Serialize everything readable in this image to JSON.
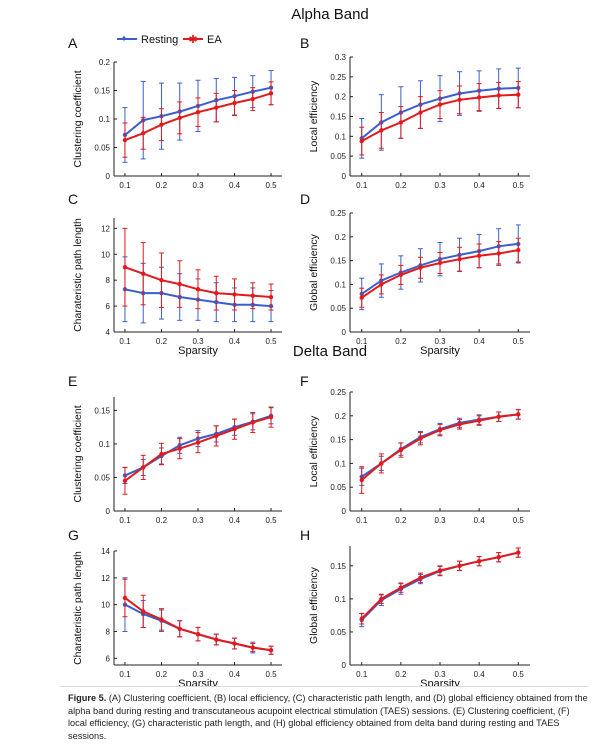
{
  "sections": [
    {
      "title": "Alpha Band"
    },
    {
      "title": "Delta Band"
    }
  ],
  "legend": {
    "resting_label": "Resting",
    "ea_label": "EA",
    "resting_color": "#3a5fcd",
    "ea_color": "#e31a1c"
  },
  "caption": {
    "label": "Figure 5.",
    "text": "(A) Clustering coefficient, (B) local efficiency, (C) characteristic path length, and (D) global efficiency obtained from the alpha band during resting and transcutaneous acupoint electrical stimulation (TAES) sessions. (E) Clustering coefficient, (F) local efficiency, (G) characteristic path length, and (H) global efficiency obtained from delta band during resting and TAES sessions."
  },
  "chart_data": [
    {
      "panel": "A",
      "type": "line",
      "xlabel": "",
      "ylabel": "Clustering coefficient",
      "x": [
        0.1,
        0.15,
        0.2,
        0.25,
        0.3,
        0.35,
        0.4,
        0.45,
        0.5
      ],
      "xticks": [
        0.1,
        0.2,
        0.3,
        0.4,
        0.5
      ],
      "xlim": [
        0.07,
        0.53
      ],
      "yticks": [
        0,
        0.05,
        0.1,
        0.15,
        0.2
      ],
      "ytick_labels": [
        "0",
        "0.05",
        "0.1",
        "0.15",
        "0.2"
      ],
      "ylim": [
        0,
        0.2
      ],
      "series": [
        {
          "name": "Resting",
          "values": [
            0.072,
            0.098,
            0.105,
            0.113,
            0.123,
            0.133,
            0.14,
            0.148,
            0.155
          ],
          "err": [
            0.048,
            0.068,
            0.058,
            0.05,
            0.045,
            0.038,
            0.033,
            0.028,
            0.03
          ]
        },
        {
          "name": "EA",
          "values": [
            0.063,
            0.075,
            0.09,
            0.102,
            0.112,
            0.12,
            0.128,
            0.135,
            0.145
          ],
          "err": [
            0.03,
            0.028,
            0.028,
            0.028,
            0.025,
            0.025,
            0.022,
            0.02,
            0.02
          ]
        }
      ]
    },
    {
      "panel": "B",
      "type": "line",
      "xlabel": "",
      "ylabel": "Local efficiency",
      "x": [
        0.1,
        0.15,
        0.2,
        0.25,
        0.3,
        0.35,
        0.4,
        0.45,
        0.5
      ],
      "xticks": [
        0.1,
        0.2,
        0.3,
        0.4,
        0.5
      ],
      "xlim": [
        0.07,
        0.53
      ],
      "yticks": [
        0,
        0.05,
        0.1,
        0.15,
        0.2,
        0.25,
        0.3
      ],
      "ytick_labels": [
        "0",
        "0.05",
        "0.1",
        "0.15",
        "0.2",
        "0.25",
        "0.3"
      ],
      "ylim": [
        0,
        0.3
      ],
      "series": [
        {
          "name": "Resting",
          "values": [
            0.095,
            0.135,
            0.16,
            0.18,
            0.195,
            0.208,
            0.215,
            0.22,
            0.222
          ],
          "err": [
            0.05,
            0.07,
            0.065,
            0.06,
            0.058,
            0.055,
            0.05,
            0.05,
            0.05
          ]
        },
        {
          "name": "EA",
          "values": [
            0.088,
            0.115,
            0.135,
            0.16,
            0.18,
            0.192,
            0.198,
            0.203,
            0.205
          ],
          "err": [
            0.035,
            0.045,
            0.04,
            0.04,
            0.035,
            0.035,
            0.035,
            0.033,
            0.033
          ]
        }
      ]
    },
    {
      "panel": "C",
      "type": "line",
      "xlabel": "Sparsity",
      "ylabel": "Charateristic path length",
      "x": [
        0.1,
        0.15,
        0.2,
        0.25,
        0.3,
        0.35,
        0.4,
        0.45,
        0.5
      ],
      "xticks": [
        0.1,
        0.2,
        0.3,
        0.4,
        0.5
      ],
      "xlim": [
        0.07,
        0.53
      ],
      "yticks": [
        4,
        6,
        8,
        10,
        12
      ],
      "ytick_labels": [
        "4",
        "6",
        "8",
        "10",
        "12"
      ],
      "ylim": [
        4,
        12.8
      ],
      "series": [
        {
          "name": "Resting",
          "values": [
            7.3,
            7.0,
            7.0,
            6.7,
            6.5,
            6.3,
            6.1,
            6.1,
            6.0
          ],
          "err": [
            2.5,
            2.3,
            2.0,
            1.8,
            1.6,
            1.5,
            1.3,
            1.3,
            1.2
          ]
        },
        {
          "name": "EA",
          "values": [
            9.0,
            8.5,
            8.0,
            7.7,
            7.3,
            7.0,
            6.9,
            6.8,
            6.7
          ],
          "err": [
            3.0,
            2.4,
            2.1,
            1.8,
            1.5,
            1.3,
            1.2,
            1.0,
            1.0
          ]
        }
      ]
    },
    {
      "panel": "D",
      "type": "line",
      "xlabel": "Sparsity",
      "ylabel": "Global efficiency",
      "x": [
        0.1,
        0.15,
        0.2,
        0.25,
        0.3,
        0.35,
        0.4,
        0.45,
        0.5
      ],
      "xticks": [
        0.1,
        0.2,
        0.3,
        0.4,
        0.5
      ],
      "xlim": [
        0.07,
        0.53
      ],
      "yticks": [
        0,
        0.05,
        0.1,
        0.15,
        0.2,
        0.25
      ],
      "ytick_labels": [
        "0",
        "0.05",
        "0.1",
        "0.15",
        "0.2",
        "0.25"
      ],
      "ylim": [
        0,
        0.25
      ],
      "series": [
        {
          "name": "Resting",
          "values": [
            0.08,
            0.108,
            0.125,
            0.14,
            0.153,
            0.162,
            0.17,
            0.18,
            0.185
          ],
          "err": [
            0.033,
            0.035,
            0.035,
            0.035,
            0.035,
            0.035,
            0.035,
            0.037,
            0.04
          ]
        },
        {
          "name": "EA",
          "values": [
            0.072,
            0.1,
            0.12,
            0.135,
            0.145,
            0.153,
            0.16,
            0.165,
            0.172
          ],
          "err": [
            0.02,
            0.02,
            0.02,
            0.022,
            0.022,
            0.025,
            0.025,
            0.025,
            0.025
          ]
        }
      ]
    },
    {
      "panel": "E",
      "type": "line",
      "xlabel": "",
      "ylabel": "Clustering coefficient",
      "x": [
        0.1,
        0.15,
        0.2,
        0.25,
        0.3,
        0.35,
        0.4,
        0.45,
        0.5
      ],
      "xticks": [
        0.1,
        0.2,
        0.3,
        0.4,
        0.5
      ],
      "xlim": [
        0.07,
        0.53
      ],
      "yticks": [
        0,
        0.05,
        0.1,
        0.15
      ],
      "ytick_labels": [
        "0",
        "0.05",
        "0.1",
        "0.15"
      ],
      "ylim": [
        0,
        0.17
      ],
      "series": [
        {
          "name": "Resting",
          "values": [
            0.053,
            0.065,
            0.082,
            0.098,
            0.108,
            0.115,
            0.125,
            0.133,
            0.142
          ],
          "err": [
            0.012,
            0.012,
            0.012,
            0.012,
            0.012,
            0.012,
            0.012,
            0.012,
            0.012
          ]
        },
        {
          "name": "EA",
          "values": [
            0.045,
            0.065,
            0.085,
            0.093,
            0.102,
            0.112,
            0.122,
            0.132,
            0.14
          ],
          "err": [
            0.02,
            0.018,
            0.016,
            0.015,
            0.015,
            0.015,
            0.015,
            0.015,
            0.015
          ]
        }
      ]
    },
    {
      "panel": "F",
      "type": "line",
      "xlabel": "",
      "ylabel": "Local efficiency",
      "x": [
        0.1,
        0.15,
        0.2,
        0.25,
        0.3,
        0.35,
        0.4,
        0.45,
        0.5
      ],
      "xticks": [
        0.1,
        0.2,
        0.3,
        0.4,
        0.5
      ],
      "xlim": [
        0.07,
        0.53
      ],
      "yticks": [
        0,
        0.05,
        0.1,
        0.15,
        0.2,
        0.25
      ],
      "ytick_labels": [
        "0",
        "0.05",
        "0.1",
        "0.15",
        "0.2",
        "0.25"
      ],
      "ylim": [
        0,
        0.25
      ],
      "series": [
        {
          "name": "Resting",
          "values": [
            0.072,
            0.1,
            0.13,
            0.155,
            0.172,
            0.185,
            0.192,
            0.198,
            0.203
          ],
          "err": [
            0.018,
            0.015,
            0.013,
            0.012,
            0.012,
            0.01,
            0.01,
            0.01,
            0.01
          ]
        },
        {
          "name": "EA",
          "values": [
            0.065,
            0.1,
            0.128,
            0.152,
            0.17,
            0.182,
            0.19,
            0.198,
            0.203
          ],
          "err": [
            0.028,
            0.02,
            0.015,
            0.013,
            0.012,
            0.01,
            0.01,
            0.01,
            0.01
          ]
        }
      ]
    },
    {
      "panel": "G",
      "type": "line",
      "xlabel": "Sparsity",
      "ylabel": "Charateristic path length",
      "x": [
        0.1,
        0.15,
        0.2,
        0.25,
        0.3,
        0.35,
        0.4,
        0.45,
        0.5
      ],
      "xticks": [
        0.1,
        0.2,
        0.3,
        0.4,
        0.5
      ],
      "xlim": [
        0.07,
        0.53
      ],
      "yticks": [
        6,
        8,
        10,
        12,
        14
      ],
      "ytick_labels": [
        "6",
        "8",
        "10",
        "12",
        "14"
      ],
      "ylim": [
        5.5,
        14
      ],
      "series": [
        {
          "name": "Resting",
          "values": [
            10.0,
            9.3,
            8.8,
            8.2,
            7.8,
            7.4,
            7.1,
            6.8,
            6.6
          ],
          "err": [
            2.0,
            1.0,
            0.8,
            0.6,
            0.5,
            0.4,
            0.4,
            0.4,
            0.3
          ]
        },
        {
          "name": "EA",
          "values": [
            10.5,
            9.5,
            8.9,
            8.2,
            7.8,
            7.4,
            7.1,
            6.8,
            6.6
          ],
          "err": [
            1.4,
            1.2,
            0.8,
            0.6,
            0.5,
            0.4,
            0.4,
            0.3,
            0.3
          ]
        }
      ]
    },
    {
      "panel": "H",
      "type": "line",
      "xlabel": "Sparsity",
      "ylabel": "Global efficiency",
      "x": [
        0.1,
        0.15,
        0.2,
        0.25,
        0.3,
        0.35,
        0.4,
        0.45,
        0.5
      ],
      "xticks": [
        0.1,
        0.2,
        0.3,
        0.4,
        0.5
      ],
      "xlim": [
        0.07,
        0.53
      ],
      "yticks": [
        0,
        0.05,
        0.1,
        0.15
      ],
      "ytick_labels": [
        "0",
        "0.05",
        "0.1",
        "0.15"
      ],
      "ylim": [
        0,
        0.18
      ],
      "series": [
        {
          "name": "Resting",
          "values": [
            0.068,
            0.098,
            0.115,
            0.13,
            0.142,
            0.15,
            0.157,
            0.163,
            0.17
          ],
          "err": [
            0.01,
            0.008,
            0.008,
            0.007,
            0.007,
            0.007,
            0.007,
            0.007,
            0.007
          ]
        },
        {
          "name": "EA",
          "values": [
            0.07,
            0.1,
            0.117,
            0.132,
            0.143,
            0.15,
            0.157,
            0.163,
            0.17
          ],
          "err": [
            0.008,
            0.007,
            0.007,
            0.007,
            0.007,
            0.007,
            0.007,
            0.007,
            0.007
          ]
        }
      ]
    }
  ]
}
